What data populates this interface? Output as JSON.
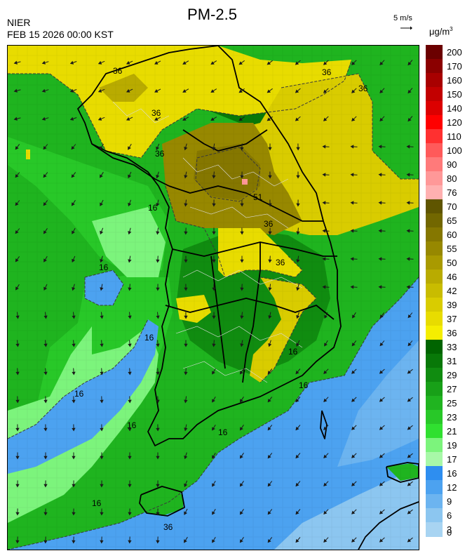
{
  "header": {
    "title": "PM-2.5",
    "org": "NIER",
    "timestamp": "FEB 15 2026 00:00 KST",
    "wind_ref": "5 m/s",
    "unit_base": "μg/m",
    "unit_exp": "3"
  },
  "legend": {
    "levels": [
      {
        "label": "200",
        "color": "#6b0000"
      },
      {
        "label": "170",
        "color": "#8b0000"
      },
      {
        "label": "160",
        "color": "#a80000"
      },
      {
        "label": "150",
        "color": "#c20000"
      },
      {
        "label": "140",
        "color": "#dc0000"
      },
      {
        "label": "120",
        "color": "#ff0000"
      },
      {
        "label": "110",
        "color": "#ff3030"
      },
      {
        "label": "100",
        "color": "#ff5a5a"
      },
      {
        "label": "90",
        "color": "#ff7a7a"
      },
      {
        "label": "80",
        "color": "#ff9898"
      },
      {
        "label": "76",
        "color": "#ffb0b0"
      },
      {
        "label": "70",
        "color": "#5f5500"
      },
      {
        "label": "65",
        "color": "#726700"
      },
      {
        "label": "60",
        "color": "#857700"
      },
      {
        "label": "55",
        "color": "#978800"
      },
      {
        "label": "50",
        "color": "#a99a00"
      },
      {
        "label": "46",
        "color": "#b9ab00"
      },
      {
        "label": "42",
        "color": "#c9bc00"
      },
      {
        "label": "39",
        "color": "#d9cc00"
      },
      {
        "label": "37",
        "color": "#e8dc00"
      },
      {
        "label": "36",
        "color": "#f5ee00"
      },
      {
        "label": "33",
        "color": "#006400"
      },
      {
        "label": "31",
        "color": "#087808"
      },
      {
        "label": "29",
        "color": "#108c10"
      },
      {
        "label": "27",
        "color": "#18a018"
      },
      {
        "label": "25",
        "color": "#20b420"
      },
      {
        "label": "23",
        "color": "#28c828"
      },
      {
        "label": "21",
        "color": "#30e030"
      },
      {
        "label": "19",
        "color": "#7cf47c"
      },
      {
        "label": "17",
        "color": "#a8f8a8"
      },
      {
        "label": "16",
        "color": "#2e8ef0"
      },
      {
        "label": "12",
        "color": "#4ca2f0"
      },
      {
        "label": "9",
        "color": "#6cb4f0"
      },
      {
        "label": "6",
        "color": "#8cc6f0"
      },
      {
        "label": "3",
        "color": "#a8d4f2"
      },
      {
        "label": "0",
        "color": "#a8d4f2"
      }
    ]
  },
  "map": {
    "contour_labels": [
      "36",
      "36",
      "36",
      "36",
      "36",
      "51",
      "36",
      "36",
      "16",
      "16",
      "16",
      "16",
      "16",
      "16",
      "16",
      "16",
      "16",
      "36"
    ]
  }
}
